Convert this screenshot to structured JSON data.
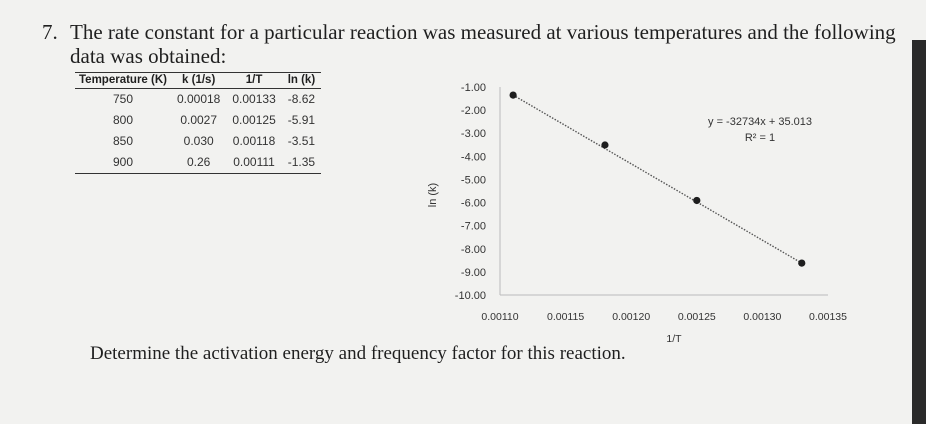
{
  "question": {
    "number": "7.",
    "line1": "The rate constant for a particular reaction was measured at various temperatures and the following",
    "line2": "data was obtained:",
    "prompt": "Determine the activation energy and frequency factor for this reaction."
  },
  "table": {
    "headers": [
      "Temperature (K)",
      "k (1/s)",
      "1/T",
      "ln (k)"
    ],
    "rows": [
      [
        "750",
        "0.00018",
        "0.00133",
        "-8.62"
      ],
      [
        "800",
        "0.0027",
        "0.00125",
        "-5.91"
      ],
      [
        "850",
        "0.030",
        "0.00118",
        "-3.51"
      ],
      [
        "900",
        "0.26",
        "0.00111",
        "-1.35"
      ]
    ]
  },
  "chart_data": {
    "type": "scatter",
    "xlabel": "1/T",
    "ylabel": "ln (k)",
    "xlim": [
      0.0011,
      0.00135
    ],
    "ylim": [
      -10,
      -1
    ],
    "x_ticks": [
      "0.00110",
      "0.00115",
      "0.00120",
      "0.00125",
      "0.00130",
      "0.00135"
    ],
    "y_ticks": [
      "-1.00",
      "-2.00",
      "-3.00",
      "-4.00",
      "-5.00",
      "-6.00",
      "-7.00",
      "-8.00",
      "-9.00",
      "-10.00"
    ],
    "y_reversed": true,
    "grid": false,
    "points": [
      {
        "x": 0.00111,
        "y": -1.35
      },
      {
        "x": 0.00118,
        "y": -3.51
      },
      {
        "x": 0.00125,
        "y": -5.91
      },
      {
        "x": 0.00133,
        "y": -8.62
      }
    ],
    "trendline": {
      "type": "linear",
      "style": "dotted"
    },
    "annotation": {
      "equation": "y = -32734x + 35.013",
      "r2": "R² = 1"
    }
  }
}
